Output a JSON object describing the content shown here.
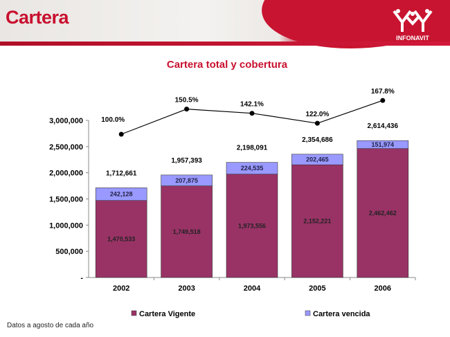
{
  "header": {
    "title": "Cartera",
    "logo": "INFONAVIT"
  },
  "footnote": "Datos a agosto de cada año",
  "colors": {
    "vigente": "#993366",
    "vencida": "#9999ff",
    "line": "#000000"
  },
  "chart_data": {
    "type": "bar",
    "title": "Cartera total y cobertura",
    "categories": [
      "2002",
      "2003",
      "2004",
      "2005",
      "2006"
    ],
    "series": [
      {
        "name": "Cartera Vigente",
        "values": [
          1470533,
          1749518,
          1973556,
          2152221,
          2462462
        ],
        "labels": [
          "1,470,533",
          "1,749,518",
          "1,973,556",
          "2,152,221",
          "2,462,462"
        ]
      },
      {
        "name": "Cartera vencida",
        "values": [
          242128,
          207875,
          224535,
          202465,
          151974
        ],
        "labels": [
          "242,128",
          "207,875",
          "224,535",
          "202,465",
          "151,974"
        ]
      }
    ],
    "totals": [
      "1,712,661",
      "1,957,393",
      "2,198,091",
      "2,354,686",
      "2,614,436"
    ],
    "coverage": {
      "type": "line",
      "values": [
        100.0,
        150.5,
        142.1,
        122.0,
        167.8
      ],
      "labels": [
        "100.0%",
        "150.5%",
        "142.1%",
        "122.0%",
        "167.8%"
      ]
    },
    "ylim": [
      0,
      3000000
    ],
    "yticks": [
      0,
      500000,
      1000000,
      1500000,
      2000000,
      2500000,
      3000000
    ],
    "ytick_labels": [
      "-",
      "500,000",
      "1,000,000",
      "1,500,000",
      "2,000,000",
      "2,500,000",
      "3,000,000"
    ],
    "legend": "bottom"
  }
}
